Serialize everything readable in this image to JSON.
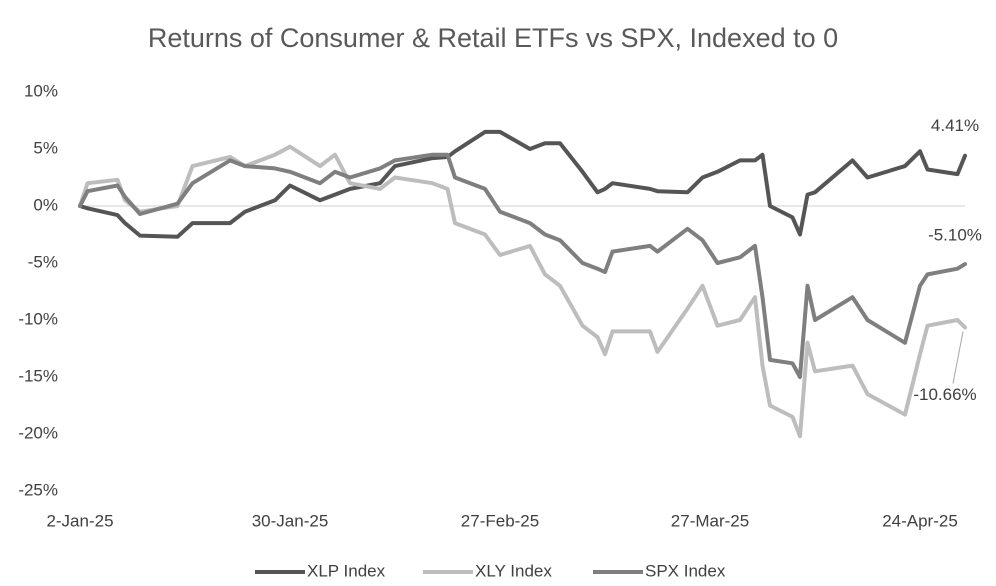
{
  "chart_data": {
    "type": "line",
    "title": "Returns of Consumer & Retail ETFs vs SPX, Indexed to 0",
    "x": [
      "2-Jan-25",
      "3-Jan-25",
      "7-Jan-25",
      "8-Jan-25",
      "10-Jan-25",
      "15-Jan-25",
      "17-Jan-25",
      "22-Jan-25",
      "24-Jan-25",
      "28-Jan-25",
      "30-Jan-25",
      "3-Feb-25",
      "5-Feb-25",
      "7-Feb-25",
      "11-Feb-25",
      "13-Feb-25",
      "18-Feb-25",
      "20-Feb-25",
      "21-Feb-25",
      "25-Feb-25",
      "27-Feb-25",
      "3-Mar-25",
      "5-Mar-25",
      "7-Mar-25",
      "10-Mar-25",
      "12-Mar-25",
      "13-Mar-25",
      "14-Mar-25",
      "19-Mar-25",
      "20-Mar-25",
      "24-Mar-25",
      "26-Mar-25",
      "28-Mar-25",
      "31-Mar-25",
      "2-Apr-25",
      "3-Apr-25",
      "4-Apr-25",
      "7-Apr-25",
      "8-Apr-25",
      "9-Apr-25",
      "10-Apr-25",
      "15-Apr-25",
      "17-Apr-25",
      "22-Apr-25",
      "24-Apr-25",
      "25-Apr-25",
      "29-Apr-25",
      "30-Apr-25"
    ],
    "xlim": [
      "2-Jan-25",
      "30-Apr-25"
    ],
    "xticks": [
      "2-Jan-25",
      "30-Jan-25",
      "27-Feb-25",
      "27-Mar-25",
      "24-Apr-25"
    ],
    "ylim": [
      -25,
      10
    ],
    "yticks": [
      {
        "value": -25,
        "label": "-25%"
      },
      {
        "value": -20,
        "label": "-20%"
      },
      {
        "value": -15,
        "label": "-15%"
      },
      {
        "value": -10,
        "label": "-10%"
      },
      {
        "value": -5,
        "label": "-5%"
      },
      {
        "value": 0,
        "label": "0%"
      },
      {
        "value": 5,
        "label": "5%"
      },
      {
        "value": 10,
        "label": "10%"
      }
    ],
    "grid": false,
    "legend": "bottom",
    "series": [
      {
        "name": "XLP Index",
        "color": "#555555",
        "values": [
          0,
          -0.2,
          -0.8,
          -1.5,
          -2.6,
          -2.7,
          -1.5,
          -1.5,
          -0.5,
          0.5,
          1.8,
          0.5,
          1.0,
          1.5,
          2.0,
          3.5,
          4.2,
          4.3,
          4.8,
          6.5,
          6.5,
          5.0,
          5.5,
          5.5,
          3.0,
          1.2,
          1.5,
          2.0,
          1.5,
          1.3,
          1.2,
          2.5,
          3.0,
          4.0,
          4.0,
          4.5,
          0.0,
          -1.0,
          -2.5,
          1.0,
          1.2,
          4.0,
          2.5,
          3.5,
          4.8,
          3.2,
          2.8,
          4.41
        ],
        "value_labels": {
          "47": "4.41%"
        }
      },
      {
        "name": "XLY Index",
        "color": "#bdbdbd",
        "values": [
          0,
          2.0,
          2.3,
          0.5,
          -0.5,
          0.0,
          3.5,
          4.3,
          3.5,
          4.5,
          5.2,
          3.5,
          4.5,
          2.0,
          1.5,
          2.5,
          2.0,
          1.5,
          -1.5,
          -2.5,
          -4.3,
          -3.5,
          -6.0,
          -7.0,
          -10.5,
          -11.5,
          -13.0,
          -11.0,
          -11.0,
          -12.8,
          -9.0,
          -7.0,
          -10.5,
          -10.0,
          -8.0,
          -14.0,
          -17.5,
          -18.5,
          -20.2,
          -12.0,
          -14.5,
          -14.0,
          -16.5,
          -18.3,
          -13.0,
          -10.5,
          -10.0,
          -10.66
        ],
        "value_labels": {
          "47": "-10.66%"
        }
      },
      {
        "name": "SPX Index",
        "color": "#7f7f7f",
        "values": [
          0,
          1.3,
          1.8,
          0.8,
          -0.7,
          0.2,
          2.0,
          4.0,
          3.5,
          3.3,
          3.0,
          2.0,
          3.0,
          2.5,
          3.3,
          4.0,
          4.5,
          4.5,
          2.5,
          1.5,
          -0.5,
          -1.5,
          -2.5,
          -3.0,
          -5.0,
          -5.5,
          -5.8,
          -4.0,
          -3.5,
          -4.0,
          -2.0,
          -3.0,
          -5.0,
          -4.5,
          -3.5,
          -8.0,
          -13.5,
          -13.8,
          -15.0,
          -7.0,
          -10.0,
          -8.0,
          -10.0,
          -12.0,
          -7.0,
          -6.0,
          -5.5,
          -5.1
        ],
        "value_labels": {
          "47": "-5.10%"
        }
      }
    ]
  }
}
